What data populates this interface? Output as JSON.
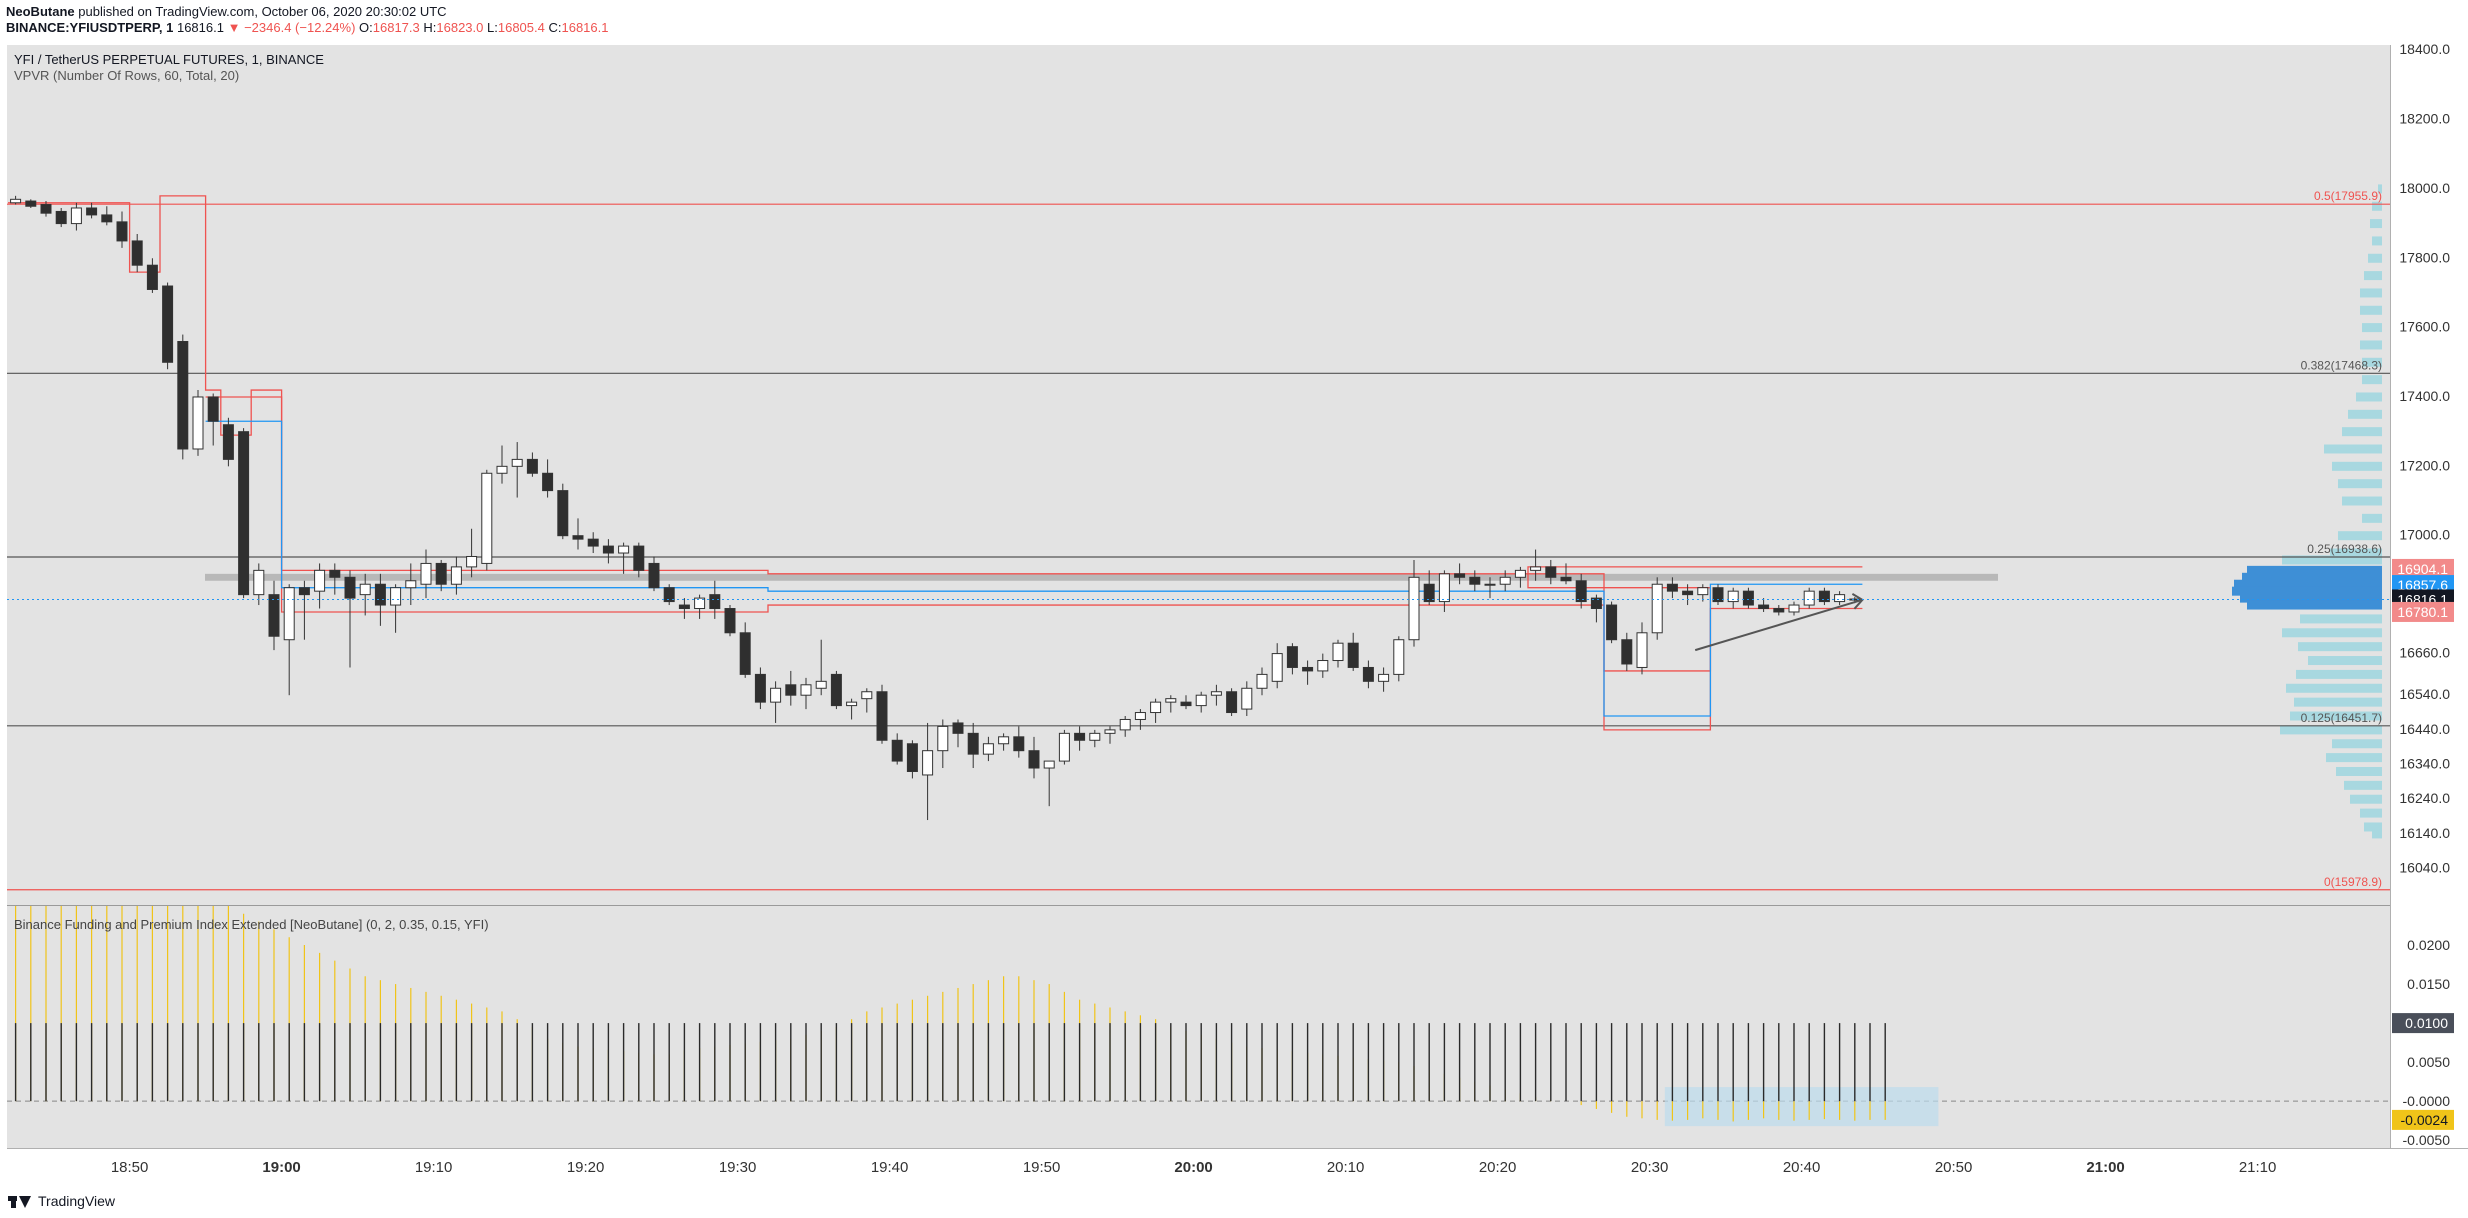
{
  "header": {
    "author": "NeoButane",
    "published_text": "published on TradingView.com, October 06, 2020 20:30:02 UTC",
    "symbol": "BINANCE:YFIUSDTPERP, 1",
    "last": "16816.1",
    "change": "−2346.4 (−12.24%)",
    "o_label": "O:",
    "o": "16817.3",
    "h_label": "H:",
    "h": "16823.0",
    "l_label": "L:",
    "l": "16805.4",
    "c_label": "C:",
    "c": "16816.1"
  },
  "legend": {
    "title": "YFI / TetherUS PERPETUAL FUTURES, 1, BINANCE",
    "vpvr": "VPVR (Number Of Rows, 60, Total, 20)",
    "indicator": "Binance Funding and Premium Index Extended [NeoButane] (0, 2, 0.35, 0.15, YFI)"
  },
  "footer": {
    "brand": "TradingView"
  },
  "colors": {
    "bg": "#e3e3e3",
    "up": "#ffffff",
    "down": "#2f2f2f",
    "red": "#ef5350",
    "vol": "#a8d8e0",
    "vol_hl": "#3e8fd6",
    "funding": "#f0c419",
    "accent_blue": "#2196f3"
  },
  "chart_data": [
    {
      "type": "candlestick",
      "title": "YFI / TetherUS PERPETUAL FUTURES, 1, BINANCE",
      "x_ticks": [
        "18:50",
        "19:00",
        "19:10",
        "19:20",
        "19:30",
        "19:40",
        "19:50",
        "20:00",
        "20:10",
        "20:20",
        "20:30",
        "20:40",
        "20:50",
        "21:00",
        "21:10"
      ],
      "y_ticks": [
        18400,
        18200,
        18000,
        17800,
        17600,
        17400,
        17200,
        17000,
        16660,
        16540,
        16440,
        16340,
        16240,
        16140,
        16040
      ],
      "ylim": [
        15935,
        18415
      ],
      "start_time": "18:42",
      "interval_min": 1,
      "ohlc": [
        [
          17960,
          17980,
          17955,
          17970
        ],
        [
          17965,
          17970,
          17945,
          17950
        ],
        [
          17955,
          17965,
          17920,
          17930
        ],
        [
          17935,
          17945,
          17890,
          17900
        ],
        [
          17900,
          17960,
          17880,
          17945
        ],
        [
          17945,
          17960,
          17915,
          17925
        ],
        [
          17925,
          17950,
          17895,
          17905
        ],
        [
          17905,
          17935,
          17830,
          17850
        ],
        [
          17850,
          17870,
          17760,
          17780
        ],
        [
          17780,
          17800,
          17700,
          17710
        ],
        [
          17720,
          17730,
          17480,
          17500
        ],
        [
          17560,
          17580,
          17220,
          17250
        ],
        [
          17250,
          17420,
          17230,
          17400
        ],
        [
          17400,
          17410,
          17260,
          17330
        ],
        [
          17320,
          17340,
          17200,
          17220
        ],
        [
          17300,
          17310,
          16820,
          16830
        ],
        [
          16830,
          16920,
          16800,
          16900
        ],
        [
          16830,
          16870,
          16670,
          16710
        ],
        [
          16700,
          16860,
          16540,
          16850
        ],
        [
          16850,
          16870,
          16700,
          16830
        ],
        [
          16840,
          16920,
          16790,
          16900
        ],
        [
          16900,
          16920,
          16830,
          16880
        ],
        [
          16880,
          16900,
          16620,
          16820
        ],
        [
          16830,
          16890,
          16770,
          16860
        ],
        [
          16860,
          16890,
          16740,
          16800
        ],
        [
          16800,
          16860,
          16720,
          16850
        ],
        [
          16850,
          16920,
          16800,
          16870
        ],
        [
          16860,
          16960,
          16820,
          16920
        ],
        [
          16920,
          16930,
          16840,
          16860
        ],
        [
          16860,
          16940,
          16830,
          16910
        ],
        [
          16910,
          17020,
          16880,
          16940
        ],
        [
          16920,
          17190,
          16900,
          17180
        ],
        [
          17180,
          17260,
          17150,
          17200
        ],
        [
          17200,
          17270,
          17110,
          17220
        ],
        [
          17220,
          17240,
          17170,
          17180
        ],
        [
          17180,
          17220,
          17110,
          17130
        ],
        [
          17130,
          17150,
          16990,
          17000
        ],
        [
          17000,
          17050,
          16960,
          16990
        ],
        [
          16990,
          17010,
          16950,
          16970
        ],
        [
          16970,
          16990,
          16920,
          16950
        ],
        [
          16950,
          16980,
          16890,
          16970
        ],
        [
          16970,
          16980,
          16880,
          16900
        ],
        [
          16920,
          16940,
          16840,
          16850
        ],
        [
          16850,
          16860,
          16800,
          16810
        ],
        [
          16800,
          16820,
          16760,
          16790
        ],
        [
          16790,
          16830,
          16760,
          16820
        ],
        [
          16830,
          16870,
          16760,
          16790
        ],
        [
          16790,
          16800,
          16710,
          16720
        ],
        [
          16720,
          16750,
          16590,
          16600
        ],
        [
          16600,
          16620,
          16500,
          16520
        ],
        [
          16520,
          16580,
          16460,
          16560
        ],
        [
          16570,
          16610,
          16510,
          16540
        ],
        [
          16540,
          16590,
          16500,
          16570
        ],
        [
          16560,
          16700,
          16540,
          16580
        ],
        [
          16600,
          16610,
          16500,
          16510
        ],
        [
          16510,
          16530,
          16470,
          16520
        ],
        [
          16530,
          16560,
          16490,
          16550
        ],
        [
          16550,
          16570,
          16400,
          16410
        ],
        [
          16410,
          16430,
          16340,
          16350
        ],
        [
          16400,
          16410,
          16300,
          16320
        ],
        [
          16310,
          16460,
          16180,
          16380
        ],
        [
          16380,
          16470,
          16330,
          16450
        ],
        [
          16460,
          16470,
          16390,
          16430
        ],
        [
          16430,
          16460,
          16330,
          16370
        ],
        [
          16370,
          16420,
          16350,
          16400
        ],
        [
          16400,
          16430,
          16380,
          16420
        ],
        [
          16420,
          16450,
          16360,
          16380
        ],
        [
          16380,
          16420,
          16300,
          16330
        ],
        [
          16330,
          16350,
          16220,
          16350
        ],
        [
          16350,
          16440,
          16340,
          16430
        ],
        [
          16430,
          16450,
          16380,
          16410
        ],
        [
          16410,
          16440,
          16390,
          16430
        ],
        [
          16430,
          16450,
          16400,
          16440
        ],
        [
          16440,
          16480,
          16420,
          16470
        ],
        [
          16470,
          16500,
          16440,
          16490
        ],
        [
          16490,
          16530,
          16460,
          16520
        ],
        [
          16520,
          16540,
          16490,
          16530
        ],
        [
          16520,
          16540,
          16500,
          16510
        ],
        [
          16510,
          16550,
          16490,
          16540
        ],
        [
          16540,
          16570,
          16510,
          16550
        ],
        [
          16550,
          16560,
          16480,
          16490
        ],
        [
          16500,
          16580,
          16480,
          16560
        ],
        [
          16560,
          16620,
          16540,
          16600
        ],
        [
          16580,
          16690,
          16560,
          16660
        ],
        [
          16680,
          16690,
          16600,
          16620
        ],
        [
          16620,
          16640,
          16570,
          16610
        ],
        [
          16610,
          16660,
          16590,
          16640
        ],
        [
          16640,
          16700,
          16620,
          16690
        ],
        [
          16690,
          16720,
          16610,
          16620
        ],
        [
          16620,
          16640,
          16560,
          16580
        ],
        [
          16580,
          16620,
          16550,
          16600
        ],
        [
          16600,
          16710,
          16580,
          16700
        ],
        [
          16700,
          16930,
          16680,
          16880
        ],
        [
          16860,
          16900,
          16800,
          16810
        ],
        [
          16810,
          16900,
          16780,
          16890
        ],
        [
          16890,
          16920,
          16860,
          16880
        ],
        [
          16880,
          16900,
          16840,
          16860
        ],
        [
          16860,
          16880,
          16820,
          16860
        ],
        [
          16860,
          16900,
          16840,
          16880
        ],
        [
          16880,
          16910,
          16850,
          16900
        ],
        [
          16900,
          16960,
          16870,
          16910
        ],
        [
          16910,
          16930,
          16860,
          16880
        ],
        [
          16880,
          16920,
          16860,
          16870
        ],
        [
          16870,
          16890,
          16790,
          16810
        ],
        [
          16820,
          16830,
          16750,
          16790
        ],
        [
          16800,
          16810,
          16690,
          16700
        ],
        [
          16700,
          16720,
          16610,
          16630
        ],
        [
          16620,
          16750,
          16600,
          16720
        ],
        [
          16720,
          16880,
          16700,
          16860
        ],
        [
          16860,
          16880,
          16820,
          16840
        ],
        [
          16840,
          16860,
          16800,
          16830
        ],
        [
          16830,
          16860,
          16810,
          16850
        ],
        [
          16850,
          16860,
          16800,
          16810
        ],
        [
          16810,
          16850,
          16790,
          16840
        ],
        [
          16840,
          16850,
          16790,
          16800
        ],
        [
          16800,
          16820,
          16780,
          16790
        ],
        [
          16790,
          16800,
          16770,
          16780
        ],
        [
          16780,
          16810,
          16770,
          16800
        ],
        [
          16800,
          16850,
          16790,
          16840
        ],
        [
          16840,
          16850,
          16800,
          16810
        ],
        [
          16810,
          16840,
          16800,
          16830
        ],
        [
          16817.3,
          16823,
          16805.4,
          16816.1
        ]
      ],
      "fib_levels": [
        {
          "label": "0.5(17955.9)",
          "value": 17955.9,
          "color": "#ef5350"
        },
        {
          "label": "0.382(17468.3)",
          "value": 17468.3,
          "color": "#555555"
        },
        {
          "label": "0.25(16938.6)",
          "value": 16938.6,
          "color": "#555555"
        },
        {
          "label": "0.125(16451.7)",
          "value": 16451.7,
          "color": "#555555"
        },
        {
          "label": "0(15978.9)",
          "value": 15978.9,
          "color": "#ef5350"
        }
      ],
      "price_labels": [
        {
          "text": "16904.1",
          "value": 16904.1,
          "bg": "#f28a8a",
          "fg": "#ffffff"
        },
        {
          "text": "16857.6",
          "value": 16857.6,
          "bg": "#2196f3",
          "fg": "#ffffff"
        },
        {
          "text": "16816.1",
          "value": 16816.1,
          "bg": "#131722",
          "fg": "#ffffff"
        },
        {
          "text": "16780.1",
          "value": 16780.1,
          "bg": "#f28a8a",
          "fg": "#ffffff"
        }
      ],
      "volume_profile": [
        [
          18000,
          4
        ],
        [
          17950,
          10
        ],
        [
          17900,
          12
        ],
        [
          17850,
          10
        ],
        [
          17800,
          14
        ],
        [
          17750,
          18
        ],
        [
          17700,
          22
        ],
        [
          17650,
          22
        ],
        [
          17600,
          20
        ],
        [
          17550,
          22
        ],
        [
          17500,
          20
        ],
        [
          17450,
          20
        ],
        [
          17400,
          26
        ],
        [
          17350,
          34
        ],
        [
          17300,
          40
        ],
        [
          17250,
          58
        ],
        [
          17200,
          50
        ],
        [
          17150,
          44
        ],
        [
          17100,
          40
        ],
        [
          17050,
          20
        ],
        [
          17000,
          44
        ],
        [
          16950,
          52
        ],
        [
          16930,
          100
        ],
        [
          16900,
          135
        ],
        [
          16880,
          140
        ],
        [
          16860,
          148
        ],
        [
          16840,
          150
        ],
        [
          16820,
          142
        ],
        [
          16800,
          135
        ],
        [
          16760,
          82
        ],
        [
          16720,
          100
        ],
        [
          16680,
          84
        ],
        [
          16640,
          74
        ],
        [
          16600,
          86
        ],
        [
          16560,
          96
        ],
        [
          16520,
          88
        ],
        [
          16480,
          92
        ],
        [
          16440,
          102
        ],
        [
          16400,
          50
        ],
        [
          16360,
          56
        ],
        [
          16320,
          46
        ],
        [
          16280,
          38
        ],
        [
          16240,
          32
        ],
        [
          16200,
          22
        ],
        [
          16160,
          18
        ],
        [
          16140,
          10
        ]
      ],
      "zones": [
        {
          "kind": "value_area",
          "y0": 16890,
          "y1": 16870
        },
        {
          "kind": "wedge_arrow",
          "from": [
            111,
            16670
          ],
          "to": [
            122,
            16815
          ]
        }
      ]
    },
    {
      "type": "bar",
      "title": "Binance Funding and Premium Index Extended [NeoButane] (0, 2, 0.35, 0.15, YFI)",
      "y_ticks": [
        0.02,
        0.015,
        0.01,
        0.005,
        0.0,
        -0.005
      ],
      "y_tick_labels": [
        "0.0200",
        "0.0150",
        "0.0100",
        "0.0050",
        "-0.0000",
        "-0.0050"
      ],
      "ylim": [
        -0.006,
        0.025
      ],
      "price_labels": [
        {
          "text": "0.0100",
          "value": 0.01,
          "bg": "#4a4f5a",
          "fg": "#ffffff"
        },
        {
          "text": "-0.0024",
          "value": -0.0024,
          "bg": "#f0c419",
          "fg": "#131722"
        }
      ],
      "funding_constant": 0.01,
      "premium": [
        0.025,
        0.025,
        0.025,
        0.025,
        0.025,
        0.025,
        0.025,
        0.025,
        0.025,
        0.025,
        0.025,
        0.025,
        0.025,
        0.025,
        0.025,
        0.024,
        0.023,
        0.022,
        0.021,
        0.02,
        0.019,
        0.018,
        0.017,
        0.016,
        0.0155,
        0.015,
        0.0145,
        0.014,
        0.0135,
        0.013,
        0.0125,
        0.012,
        0.0115,
        0.0105,
        0.0095,
        0.008,
        0.0075,
        0.007,
        0.0068,
        0.0066,
        0.0064,
        0.0062,
        0.006,
        0.006,
        0.0065,
        0.0068,
        0.007,
        0.0072,
        0.0074,
        0.0076,
        0.0078,
        0.008,
        0.0085,
        0.009,
        0.0095,
        0.0105,
        0.0115,
        0.012,
        0.0125,
        0.013,
        0.0135,
        0.014,
        0.0145,
        0.015,
        0.0155,
        0.016,
        0.016,
        0.0155,
        0.015,
        0.014,
        0.013,
        0.0125,
        0.012,
        0.0115,
        0.011,
        0.0105,
        0.0095,
        0.009,
        0.0085,
        0.008,
        0.0075,
        0.007,
        0.0068,
        0.0066,
        0.0064,
        0.0062,
        0.006,
        0.0058,
        0.0056,
        0.0054,
        0.0052,
        0.005,
        0.0045,
        0.004,
        0.0035,
        0.003,
        0.0025,
        0.002,
        0.0015,
        0.001,
        0.0005,
        0.0002,
        0.0,
        -0.0005,
        -0.001,
        -0.0015,
        -0.002,
        -0.0022,
        -0.0024,
        -0.0025,
        -0.0024,
        -0.0022,
        -0.0024,
        -0.0026,
        -0.0024,
        -0.0022,
        -0.0024,
        -0.0025,
        -0.0024,
        -0.0023,
        -0.0024,
        -0.0025,
        -0.0024,
        -0.0024
      ]
    }
  ]
}
